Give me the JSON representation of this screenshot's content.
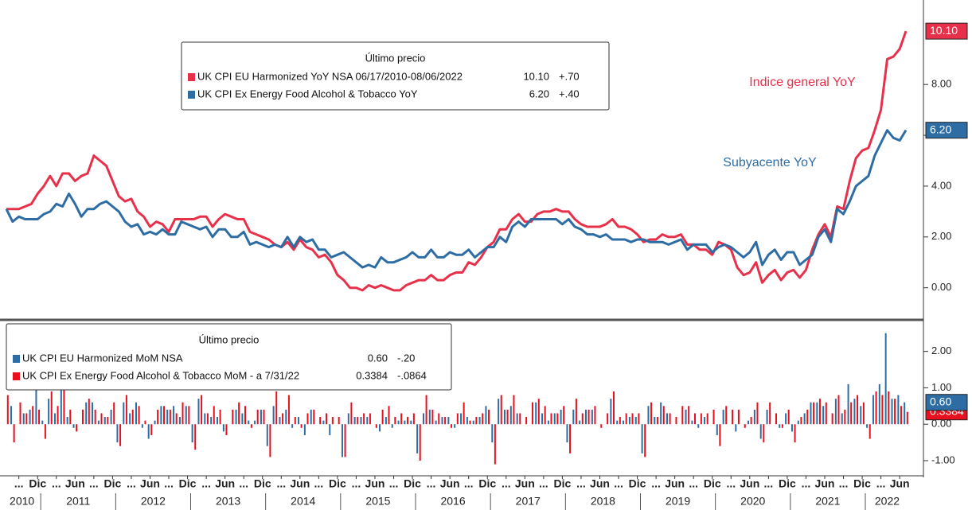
{
  "chart_data": [
    {
      "type": "line",
      "legend_title": "Último precio",
      "x": [
        "2010-07",
        "2010-08",
        "2010-09",
        "2010-10",
        "2010-11",
        "2010-12",
        "2011-01",
        "2011-02",
        "2011-03",
        "2011-04",
        "2011-05",
        "2011-06",
        "2011-07",
        "2011-08",
        "2011-09",
        "2011-10",
        "2011-11",
        "2011-12",
        "2012-01",
        "2012-02",
        "2012-03",
        "2012-04",
        "2012-05",
        "2012-06",
        "2012-07",
        "2012-08",
        "2012-09",
        "2012-10",
        "2012-11",
        "2012-12",
        "2013-01",
        "2013-02",
        "2013-03",
        "2013-04",
        "2013-05",
        "2013-06",
        "2013-07",
        "2013-08",
        "2013-09",
        "2013-10",
        "2013-11",
        "2013-12",
        "2014-01",
        "2014-02",
        "2014-03",
        "2014-04",
        "2014-05",
        "2014-06",
        "2014-07",
        "2014-08",
        "2014-09",
        "2014-10",
        "2014-11",
        "2014-12",
        "2015-01",
        "2015-02",
        "2015-03",
        "2015-04",
        "2015-05",
        "2015-06",
        "2015-07",
        "2015-08",
        "2015-09",
        "2015-10",
        "2015-11",
        "2015-12",
        "2016-01",
        "2016-02",
        "2016-03",
        "2016-04",
        "2016-05",
        "2016-06",
        "2016-07",
        "2016-08",
        "2016-09",
        "2016-10",
        "2016-11",
        "2016-12",
        "2017-01",
        "2017-02",
        "2017-03",
        "2017-04",
        "2017-05",
        "2017-06",
        "2017-07",
        "2017-08",
        "2017-09",
        "2017-10",
        "2017-11",
        "2017-12",
        "2018-01",
        "2018-02",
        "2018-03",
        "2018-04",
        "2018-05",
        "2018-06",
        "2018-07",
        "2018-08",
        "2018-09",
        "2018-10",
        "2018-11",
        "2018-12",
        "2019-01",
        "2019-02",
        "2019-03",
        "2019-04",
        "2019-05",
        "2019-06",
        "2019-07",
        "2019-08",
        "2019-09",
        "2019-10",
        "2019-11",
        "2019-12",
        "2020-01",
        "2020-02",
        "2020-03",
        "2020-04",
        "2020-05",
        "2020-06",
        "2020-07",
        "2020-08",
        "2020-09",
        "2020-10",
        "2020-11",
        "2020-12",
        "2021-01",
        "2021-02",
        "2021-03",
        "2021-04",
        "2021-05",
        "2021-06",
        "2021-07",
        "2021-08",
        "2021-09",
        "2021-10",
        "2021-11",
        "2021-12",
        "2022-01",
        "2022-02",
        "2022-03",
        "2022-04",
        "2022-05",
        "2022-06",
        "2022-07"
      ],
      "series": [
        {
          "name": "UK CPI EU Harmonized YoY NSA 06/17/2010-08/06/2022",
          "color": "#e8304a",
          "last_label": "10.10",
          "change": "+.70",
          "annotation": "Indice general YoY",
          "values": [
            3.1,
            3.1,
            3.1,
            3.2,
            3.3,
            3.7,
            4.0,
            4.4,
            4.0,
            4.5,
            4.5,
            4.2,
            4.4,
            4.5,
            5.2,
            5.0,
            4.8,
            4.2,
            3.6,
            3.4,
            3.5,
            3.0,
            2.8,
            2.4,
            2.6,
            2.5,
            2.2,
            2.7,
            2.7,
            2.7,
            2.7,
            2.8,
            2.8,
            2.4,
            2.7,
            2.9,
            2.8,
            2.7,
            2.7,
            2.2,
            2.1,
            2.0,
            1.9,
            1.7,
            1.6,
            1.8,
            1.5,
            1.9,
            1.6,
            1.5,
            1.2,
            1.3,
            1.0,
            0.5,
            0.3,
            0.0,
            0.0,
            -0.1,
            0.1,
            0.0,
            0.1,
            0.0,
            -0.1,
            -0.1,
            0.1,
            0.2,
            0.3,
            0.3,
            0.5,
            0.3,
            0.3,
            0.5,
            0.6,
            0.6,
            1.0,
            0.9,
            1.2,
            1.6,
            1.8,
            2.3,
            2.3,
            2.7,
            2.9,
            2.6,
            2.6,
            2.9,
            3.0,
            3.0,
            3.1,
            3.0,
            3.0,
            2.7,
            2.5,
            2.4,
            2.4,
            2.4,
            2.5,
            2.7,
            2.4,
            2.4,
            2.3,
            2.1,
            1.8,
            1.9,
            1.9,
            2.1,
            2.0,
            2.0,
            2.1,
            1.7,
            1.7,
            1.5,
            1.5,
            1.3,
            1.8,
            1.7,
            1.5,
            0.8,
            0.5,
            0.6,
            1.0,
            0.2,
            0.5,
            0.7,
            0.3,
            0.6,
            0.7,
            0.4,
            0.7,
            1.5,
            2.1,
            2.5,
            2.0,
            3.2,
            3.1,
            4.2,
            5.1,
            5.4,
            5.5,
            6.2,
            7.0,
            9.0,
            9.1,
            9.4,
            10.1
          ]
        },
        {
          "name": "UK CPI Ex Energy Food Alcohol & Tobacco YoY",
          "color": "#2e6da4",
          "last_label": "6.20",
          "change": "+.40",
          "annotation": "Subyacente YoY",
          "values": [
            3.1,
            2.6,
            2.8,
            2.7,
            2.7,
            2.7,
            2.9,
            3.0,
            3.3,
            3.2,
            3.7,
            3.3,
            2.8,
            3.1,
            3.1,
            3.3,
            3.4,
            3.2,
            3.0,
            2.6,
            2.4,
            2.5,
            2.1,
            2.2,
            2.1,
            2.3,
            2.1,
            2.1,
            2.6,
            2.5,
            2.4,
            2.3,
            2.4,
            2.0,
            2.3,
            2.3,
            2.0,
            2.0,
            2.2,
            1.7,
            1.8,
            1.7,
            1.6,
            1.7,
            1.6,
            2.0,
            1.6,
            2.0,
            1.8,
            1.9,
            1.5,
            1.5,
            1.2,
            1.3,
            1.4,
            1.2,
            1.0,
            0.8,
            0.9,
            0.8,
            1.2,
            1.0,
            1.0,
            1.1,
            1.2,
            1.4,
            1.2,
            1.2,
            1.5,
            1.2,
            1.2,
            1.4,
            1.3,
            1.3,
            1.5,
            1.2,
            1.4,
            1.6,
            1.6,
            2.0,
            1.8,
            2.4,
            2.6,
            2.4,
            2.7,
            2.7,
            2.7,
            2.7,
            2.7,
            2.5,
            2.7,
            2.4,
            2.3,
            2.1,
            2.1,
            2.0,
            2.1,
            1.9,
            1.9,
            1.9,
            1.8,
            1.9,
            1.9,
            1.8,
            1.8,
            1.8,
            1.7,
            1.8,
            1.9,
            1.5,
            1.7,
            1.7,
            1.7,
            1.4,
            1.6,
            1.7,
            1.6,
            1.4,
            1.2,
            1.4,
            1.8,
            0.9,
            1.3,
            1.5,
            1.1,
            1.4,
            1.4,
            0.9,
            1.1,
            1.3,
            2.0,
            2.3,
            1.8,
            3.1,
            2.9,
            3.4,
            4.0,
            4.2,
            4.4,
            5.2,
            5.7,
            6.2,
            5.9,
            5.8,
            6.2
          ]
        }
      ],
      "ylim": [
        -1.2,
        11.2
      ],
      "yticks": [
        {
          "value": 0,
          "label": "0.00"
        },
        {
          "value": 2,
          "label": "2.00"
        },
        {
          "value": 4,
          "label": "4.00"
        },
        {
          "value": 6,
          "label": "6.00"
        },
        {
          "value": 8,
          "label": "8.00"
        }
      ]
    },
    {
      "type": "bar",
      "legend_title": "Último precio",
      "series": [
        {
          "name": "UK CPI EU Harmonized MoM NSA",
          "color": "#2e6da4",
          "last_label": "0.60",
          "change": "-.20",
          "values": [
            0.0,
            0.5,
            0.0,
            0.3,
            0.4,
            1.0,
            0.1,
            0.7,
            0.3,
            1.0,
            0.2,
            -0.1,
            0.0,
            0.6,
            0.6,
            0.1,
            0.2,
            0.4,
            -0.5,
            0.6,
            0.3,
            0.6,
            -0.1,
            -0.4,
            0.1,
            0.5,
            0.4,
            0.5,
            0.2,
            0.5,
            -0.5,
            0.7,
            0.3,
            0.2,
            0.2,
            -0.2,
            0.0,
            0.4,
            0.3,
            0.1,
            0.1,
            0.4,
            -0.6,
            0.5,
            0.2,
            0.4,
            -0.1,
            0.2,
            -0.3,
            0.4,
            0.0,
            0.1,
            -0.3,
            0.0,
            -0.9,
            0.3,
            0.2,
            0.2,
            0.2,
            0.0,
            -0.2,
            0.2,
            -0.1,
            0.1,
            0.1,
            0.1,
            -0.8,
            0.3,
            0.4,
            0.1,
            0.2,
            0.2,
            -0.1,
            0.3,
            0.2,
            0.1,
            0.2,
            0.5,
            -0.5,
            0.7,
            0.4,
            0.5,
            0.3,
            0.0,
            0.0,
            0.6,
            0.3,
            0.1,
            0.3,
            0.4,
            -0.5,
            0.4,
            0.1,
            0.4,
            0.4,
            0.0,
            0.0,
            0.7,
            0.1,
            0.1,
            0.2,
            0.2,
            -0.8,
            0.5,
            0.2,
            0.6,
            0.3,
            0.0,
            0.0,
            0.4,
            0.1,
            -0.1,
            0.2,
            0.0,
            -0.3,
            0.4,
            0.0,
            -0.2,
            0.0,
            0.1,
            0.4,
            -0.4,
            0.4,
            0.0,
            -0.1,
            0.3,
            -0.2,
            0.1,
            0.3,
            0.6,
            0.6,
            0.5,
            0.0,
            0.7,
            0.3,
            1.1,
            0.7,
            0.5,
            -0.1,
            0.8,
            1.1,
            2.5,
            0.7,
            0.8,
            0.6
          ]
        },
        {
          "name": "UK CPI Ex Energy Food Alcohol & Tobacco MoM - a 7/31/22",
          "color": "#e8101e",
          "last_label": "0.3384",
          "change": "-.0864",
          "values": [
            0.8,
            -0.5,
            0.6,
            0.3,
            0.5,
            0.4,
            -0.4,
            0.9,
            0.5,
            1.0,
            0.4,
            -0.2,
            0.4,
            0.7,
            0.4,
            0.3,
            0.2,
            0.6,
            -0.6,
            0.8,
            0.4,
            0.5,
            0.1,
            -0.3,
            0.4,
            0.5,
            0.4,
            0.3,
            0.6,
            0.5,
            -0.7,
            0.8,
            0.3,
            0.5,
            0.4,
            -0.3,
            0.4,
            0.6,
            0.5,
            -0.1,
            0.4,
            0.4,
            -0.9,
            0.9,
            0.3,
            0.8,
            0.2,
            -0.1,
            0.3,
            0.4,
            0.2,
            0.3,
            0.2,
            0.2,
            -0.9,
            0.6,
            0.2,
            0.3,
            0.3,
            -0.1,
            0.4,
            0.5,
            0.2,
            0.3,
            0.2,
            0.3,
            -1.0,
            0.8,
            0.4,
            0.3,
            0.2,
            -0.1,
            0.3,
            0.6,
            0.1,
            0.2,
            0.3,
            0.4,
            -1.1,
            0.8,
            0.4,
            0.8,
            0.3,
            0.2,
            0.6,
            0.7,
            0.5,
            0.3,
            0.3,
            0.5,
            -0.8,
            0.7,
            0.3,
            0.4,
            0.5,
            -0.1,
            0.3,
            0.9,
            0.2,
            0.3,
            0.3,
            0.3,
            -0.9,
            0.6,
            0.2,
            0.5,
            0.3,
            0.2,
            0.5,
            0.5,
            0.3,
            0.3,
            0.3,
            0.4,
            -0.6,
            0.5,
            0.4,
            0.4,
            -0.1,
            0.2,
            0.6,
            -0.5,
            0.6,
            0.3,
            -0.1,
            0.4,
            -0.5,
            0.2,
            0.4,
            0.6,
            0.7,
            0.6,
            0.3,
            0.8,
            0.4,
            0.6,
            0.8,
            0.6,
            -0.4,
            0.9,
            0.8,
            0.9,
            0.7,
            0.5,
            0.3384
          ]
        }
      ],
      "ylim": [
        -1.35,
        2.8
      ],
      "yticks": [
        {
          "value": -1,
          "label": "-1.00"
        },
        {
          "value": 0,
          "label": "0.00"
        },
        {
          "value": 1,
          "label": "1.00"
        },
        {
          "value": 2,
          "label": "2.00"
        }
      ]
    }
  ],
  "xaxis": {
    "ticks": [
      {
        "value": "2010-09",
        "label": "..."
      },
      {
        "value": "2010-12",
        "label": "Dic"
      },
      {
        "value": "2011-03",
        "label": "..."
      },
      {
        "value": "2011-06",
        "label": "Jun"
      },
      {
        "value": "2011-09",
        "label": "..."
      },
      {
        "value": "2011-12",
        "label": "Dic"
      },
      {
        "value": "2012-03",
        "label": "..."
      },
      {
        "value": "2012-06",
        "label": "Jun"
      },
      {
        "value": "2012-09",
        "label": "..."
      },
      {
        "value": "2012-12",
        "label": "Dic"
      },
      {
        "value": "2013-03",
        "label": "..."
      },
      {
        "value": "2013-06",
        "label": "Jun"
      },
      {
        "value": "2013-09",
        "label": "..."
      },
      {
        "value": "2013-12",
        "label": "Dic"
      },
      {
        "value": "2014-03",
        "label": "..."
      },
      {
        "value": "2014-06",
        "label": "Jun"
      },
      {
        "value": "2014-09",
        "label": "..."
      },
      {
        "value": "2014-12",
        "label": "Dic"
      },
      {
        "value": "2015-03",
        "label": "..."
      },
      {
        "value": "2015-06",
        "label": "Jun"
      },
      {
        "value": "2015-09",
        "label": "..."
      },
      {
        "value": "2015-12",
        "label": "Dic"
      },
      {
        "value": "2016-03",
        "label": "..."
      },
      {
        "value": "2016-06",
        "label": "Jun"
      },
      {
        "value": "2016-09",
        "label": "..."
      },
      {
        "value": "2016-12",
        "label": "Dic"
      },
      {
        "value": "2017-03",
        "label": "..."
      },
      {
        "value": "2017-06",
        "label": "Jun"
      },
      {
        "value": "2017-09",
        "label": "..."
      },
      {
        "value": "2017-12",
        "label": "Dic"
      },
      {
        "value": "2018-03",
        "label": "..."
      },
      {
        "value": "2018-06",
        "label": "Jun"
      },
      {
        "value": "2018-09",
        "label": "..."
      },
      {
        "value": "2018-12",
        "label": "Dic"
      },
      {
        "value": "2019-03",
        "label": "..."
      },
      {
        "value": "2019-06",
        "label": "Jun"
      },
      {
        "value": "2019-09",
        "label": "..."
      },
      {
        "value": "2019-12",
        "label": "Dic"
      },
      {
        "value": "2020-03",
        "label": "..."
      },
      {
        "value": "2020-06",
        "label": "Jun"
      },
      {
        "value": "2020-09",
        "label": "..."
      },
      {
        "value": "2020-12",
        "label": "Dic"
      },
      {
        "value": "2021-03",
        "label": "..."
      },
      {
        "value": "2021-06",
        "label": "Jun"
      },
      {
        "value": "2021-09",
        "label": "..."
      },
      {
        "value": "2021-12",
        "label": "Dic"
      },
      {
        "value": "2022-03",
        "label": "..."
      },
      {
        "value": "2022-06",
        "label": "Jun"
      }
    ],
    "years": [
      "2010",
      "2011",
      "2012",
      "2013",
      "2014",
      "2015",
      "2016",
      "2017",
      "2018",
      "2019",
      "2020",
      "2021",
      "2022"
    ]
  }
}
